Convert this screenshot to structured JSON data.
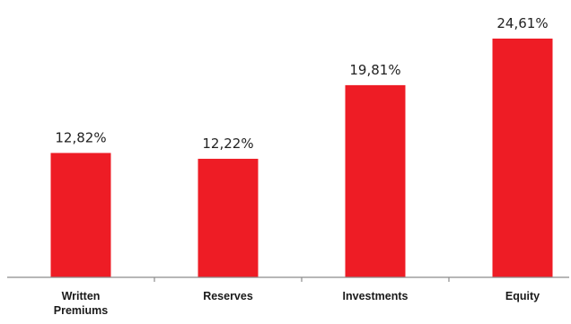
{
  "chart_data": {
    "type": "bar",
    "categories": [
      "Written Premiums",
      "Reserves",
      "Investments",
      "Equity"
    ],
    "category_lines": [
      [
        "Written",
        "Premiums"
      ],
      [
        "Reserves"
      ],
      [
        "Investments"
      ],
      [
        "Equity"
      ]
    ],
    "values": [
      12.82,
      12.22,
      19.81,
      24.61
    ],
    "data_labels": [
      "12,82%",
      "12,22%",
      "19,81%",
      "24,61%"
    ],
    "ylim": [
      0,
      24.61
    ],
    "grid": false,
    "legend": "none",
    "bar_color": "#ee1c25",
    "axis_color": "#8c8c8c"
  }
}
